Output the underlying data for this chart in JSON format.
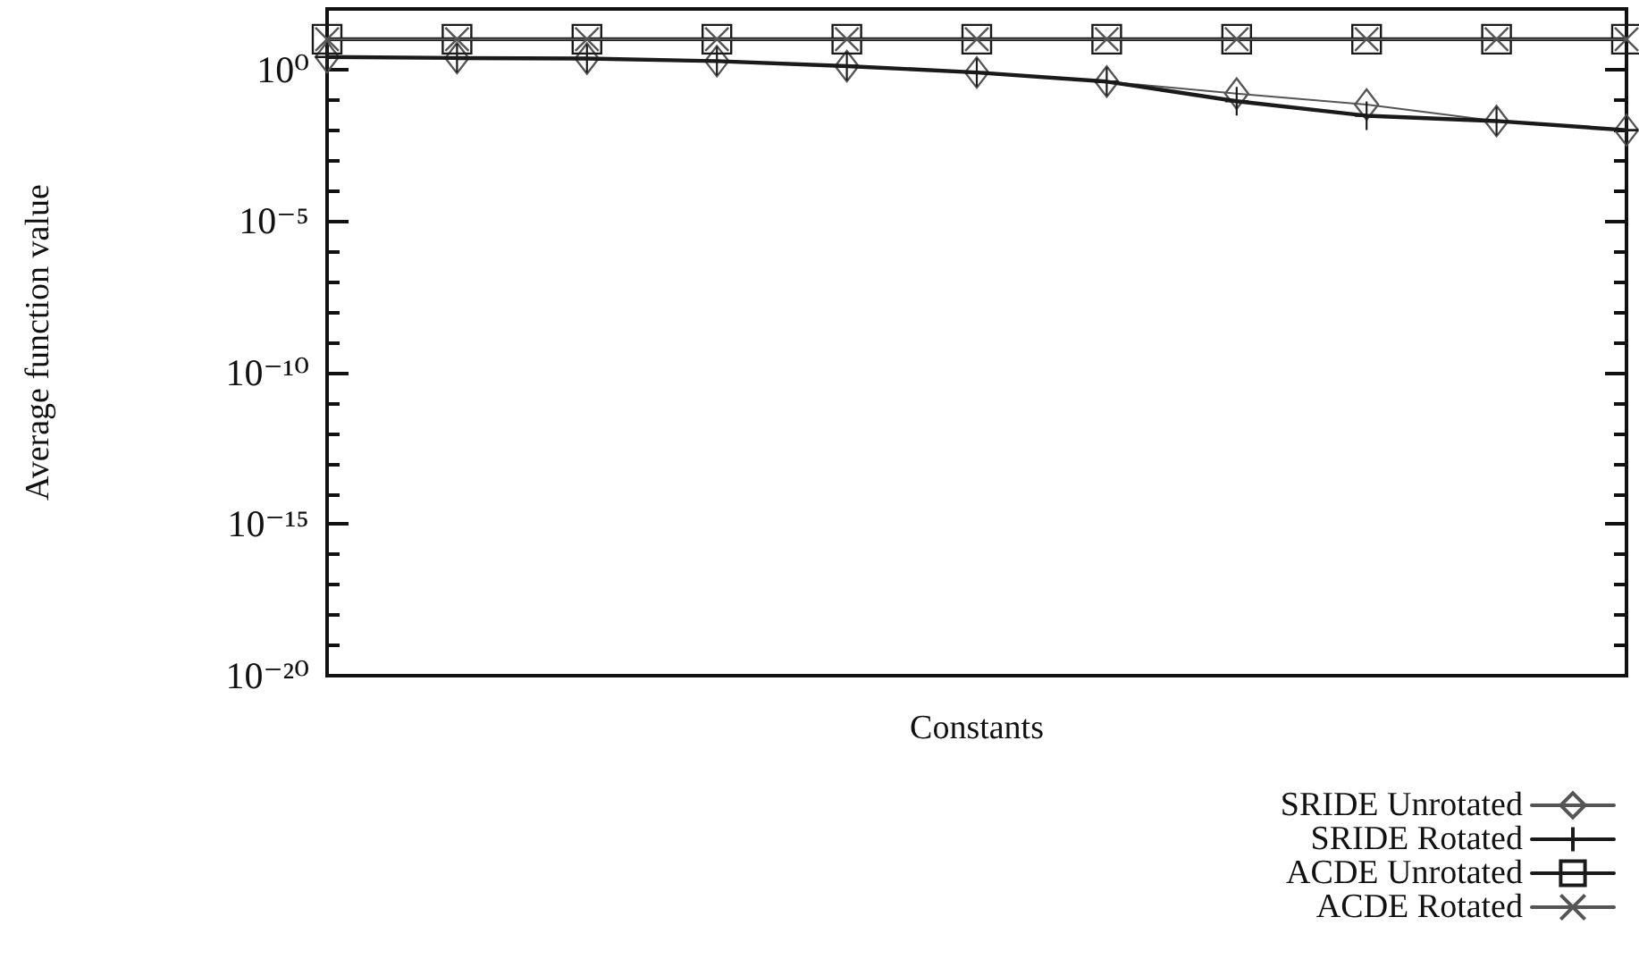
{
  "chart_data": {
    "type": "line",
    "xlabel": "Constants",
    "ylabel": "Average function value",
    "categories": [
      null,
      null,
      null,
      null,
      null,
      null,
      null,
      null,
      null,
      null,
      null
    ],
    "series": [
      {
        "name": "SRIDE Unrotated",
        "color": "#555555",
        "marker": "diamond",
        "values": [
          2.6,
          2.4,
          2.3,
          1.9,
          1.3,
          0.8,
          0.4,
          0.16,
          0.07,
          0.02,
          0.01
        ]
      },
      {
        "name": "SRIDE Rotated",
        "color": "#1a1a1a",
        "marker": "cross",
        "values": [
          2.6,
          2.4,
          2.3,
          1.9,
          1.3,
          0.8,
          0.4,
          0.09,
          0.03,
          0.02,
          0.01
        ]
      },
      {
        "name": "ACDE Unrotated",
        "color": "#1a1a1a",
        "marker": "square",
        "values": [
          10,
          10,
          10,
          10,
          10,
          10,
          10,
          10,
          10,
          10,
          10
        ]
      },
      {
        "name": "ACDE Rotated",
        "color": "#555555",
        "marker": "cross",
        "values": [
          10,
          10,
          10,
          10,
          10,
          10,
          10,
          10,
          10,
          10,
          10
        ]
      }
    ],
    "ylim": [
      1e-20,
      100
    ],
    "yticks": [
      {
        "value": 1e-20,
        "label": "10⁻²⁰"
      },
      {
        "value": 1e-19,
        "label": null
      },
      {
        "value": 1e-18,
        "label": null
      },
      {
        "value": 1e-17,
        "label": null
      },
      {
        "value": 1e-16,
        "label": null
      },
      {
        "value": 1e-15,
        "label": "10⁻¹⁵"
      },
      {
        "value": 1e-14,
        "label": null
      },
      {
        "value": 1e-13,
        "label": null
      },
      {
        "value": 1e-12,
        "label": null
      },
      {
        "value": 1e-11,
        "label": null
      },
      {
        "value": 1e-10,
        "label": "10⁻¹⁰"
      },
      {
        "value": 1e-09,
        "label": null
      },
      {
        "value": 1e-08,
        "label": null
      },
      {
        "value": 1e-07,
        "label": null
      },
      {
        "value": 1e-06,
        "label": null
      },
      {
        "value": 1e-05,
        "label": "10⁻⁵"
      },
      {
        "value": 0.0001,
        "label": null
      },
      {
        "value": 0.001,
        "label": null
      },
      {
        "value": 0.01,
        "label": null
      },
      {
        "value": 0.1,
        "label": null
      },
      {
        "value": 1,
        "label": "10⁰"
      }
    ],
    "log": "y",
    "grid": false,
    "legend": "bottom right",
    "tick_labels": "y"
  }
}
